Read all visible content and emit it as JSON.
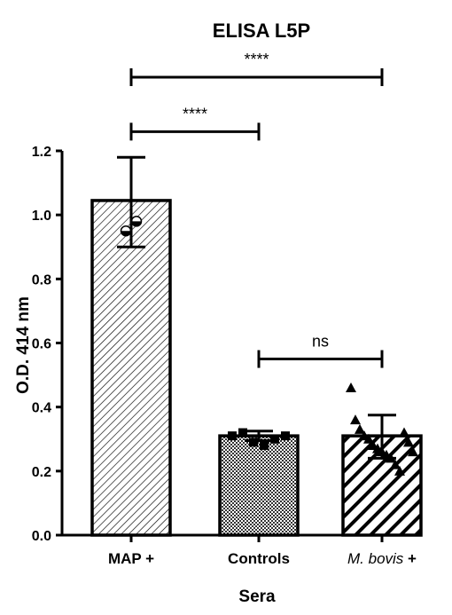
{
  "chart_data": {
    "type": "bar",
    "title": "ELISA L5P",
    "xlabel": "Sera",
    "ylabel": "O.D. 414 nm",
    "ylim": [
      0,
      1.2
    ],
    "yticks": [
      "0.0",
      "0.2",
      "0.4",
      "0.6",
      "0.8",
      "1.0",
      "1.2"
    ],
    "categories": [
      {
        "prefix": "",
        "italic": "",
        "suffix": "MAP +"
      },
      {
        "prefix": "",
        "italic": "",
        "suffix": "Controls"
      },
      {
        "prefix": "",
        "italic": "M. bovis",
        "suffix": " +"
      }
    ],
    "values": [
      1.045,
      0.31,
      0.31
    ],
    "error_high": [
      1.18,
      0.325,
      0.375
    ],
    "error_low": [
      0.9,
      0.295,
      0.24
    ],
    "fill_patterns": [
      "fine-diagonal",
      "checker",
      "wide-diagonal"
    ],
    "points": [
      {
        "marker": "circle-half",
        "y": [
          0.95,
          0.98
        ]
      },
      {
        "marker": "square",
        "y": [
          0.31,
          0.32,
          0.29,
          0.28,
          0.3,
          0.31
        ]
      },
      {
        "marker": "triangle",
        "y": [
          0.46,
          0.36,
          0.33,
          0.31,
          0.3,
          0.28,
          0.27,
          0.26,
          0.25,
          0.24,
          0.22,
          0.2,
          0.32,
          0.29,
          0.26
        ]
      }
    ],
    "significance": [
      {
        "from": 0,
        "to": 2,
        "label": "****",
        "level": 1.43
      },
      {
        "from": 0,
        "to": 1,
        "label": "****",
        "level": 1.26
      },
      {
        "from": 1,
        "to": 2,
        "label": "ns",
        "level": 0.55
      }
    ],
    "grid": false,
    "legend": "none"
  }
}
